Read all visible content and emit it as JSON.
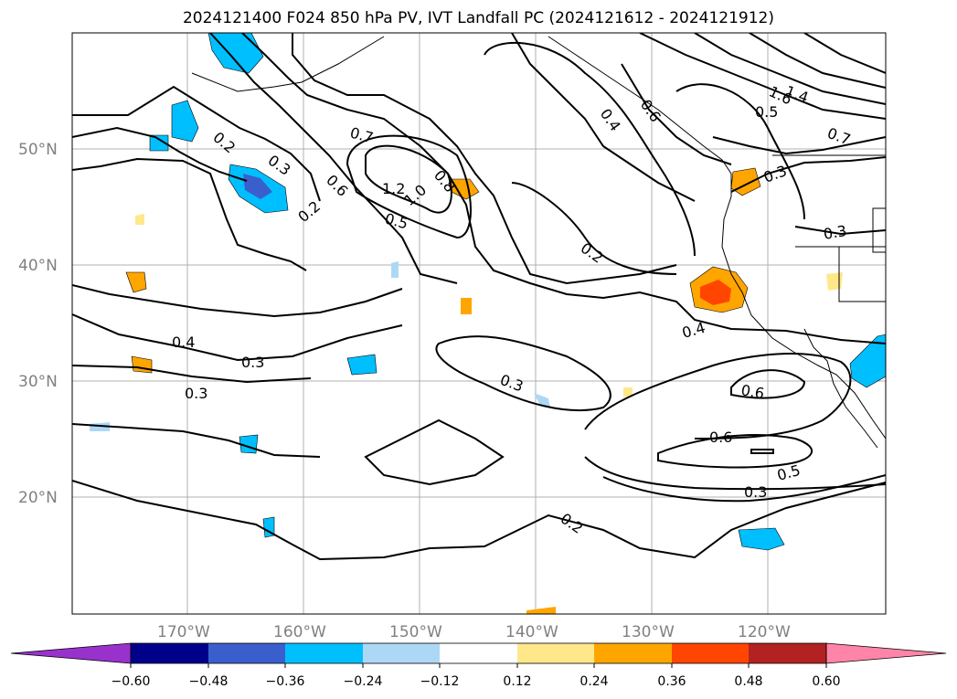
{
  "title": "2024121400 F024 850 hPa PV, IVT Landfall PC (2024121612 - 2024121912)",
  "map": {
    "lat_labels": [
      "50°N",
      "40°N",
      "30°N",
      "20°N"
    ],
    "lon_labels": [
      "170°W",
      "160°W",
      "150°W",
      "140°W",
      "130°W",
      "120°W"
    ],
    "contour_labels": [
      "0.2",
      "0.3",
      "0.2",
      "0.6",
      "0.7",
      "1.2",
      "1.0",
      "0.8",
      "0.5",
      "0.2",
      "0.4",
      "0.6",
      "1.4",
      "1.6",
      "0.5",
      "0.7",
      "0.3",
      "0.3",
      "0.4",
      "0.4",
      "0.3",
      "0.3",
      "0.3",
      "0.6",
      "0.5",
      "0.3",
      "0.2"
    ]
  },
  "colorbar": {
    "ticks": [
      "−0.60",
      "−0.48",
      "−0.36",
      "−0.24",
      "−0.12",
      "0.12",
      "0.24",
      "0.36",
      "0.48",
      "0.60"
    ],
    "colors": {
      "under": "#9932cc",
      "c1": "#00008b",
      "c2": "#3a5fcd",
      "c3": "#00bfff",
      "c4": "#add8f5",
      "c5": "#ffffff",
      "c6": "#ffe88a",
      "c7": "#ffa500",
      "c8": "#ff4500",
      "c9": "#b22222",
      "over": "#ff85a8"
    }
  }
}
